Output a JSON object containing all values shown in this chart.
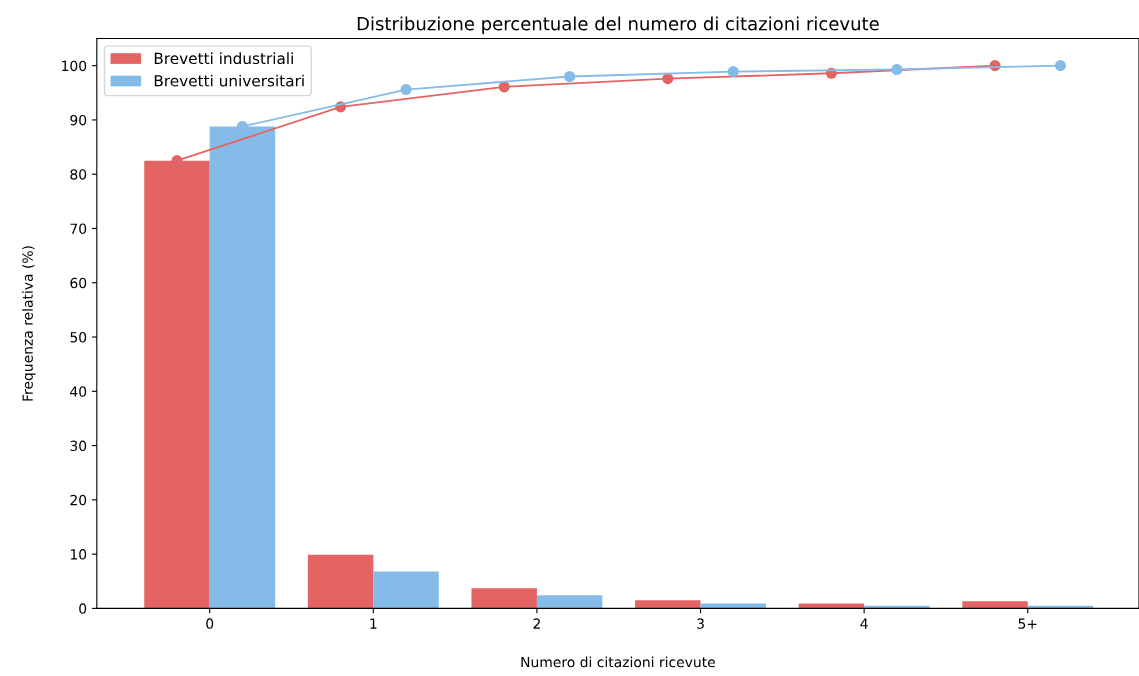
{
  "chart_data": {
    "type": "bar",
    "title": "Distribuzione percentuale del numero di citazioni ricevute",
    "xlabel": "Numero di citazioni ricevute",
    "ylabel": "Frequenza relativa (%)",
    "xlim": [
      -0.69,
      5.68
    ],
    "xticks": [
      0,
      1,
      2,
      3,
      4,
      {
        "value": 5,
        "label": "5+"
      }
    ],
    "ylim": [
      0,
      105
    ],
    "yticks": [
      0,
      10,
      20,
      30,
      40,
      50,
      60,
      70,
      80,
      90,
      100
    ],
    "series": [
      {
        "name": "Brevetti industriali",
        "color": "#e46464",
        "x": [
          -0.2,
          0.8,
          1.8,
          2.8,
          3.8,
          4.8
        ],
        "values": [
          82.5,
          9.9,
          3.7,
          1.5,
          0.9,
          1.3
        ]
      },
      {
        "name": "Brevetti universitari",
        "color": "#85bbe8",
        "x": [
          0.2,
          1.2,
          2.2,
          3.2,
          4.2,
          5.2
        ],
        "values": [
          88.8,
          6.8,
          2.4,
          0.9,
          0.5,
          0.5
        ]
      },
      {
        "type": "line",
        "color": "#e46464",
        "x": [
          -0.2,
          0.8,
          1.8,
          2.8,
          3.8,
          4.8
        ],
        "values": [
          82.5,
          92.4,
          96.1,
          97.6,
          98.6,
          100
        ]
      },
      {
        "type": "line",
        "color": "#85bbe8",
        "x": [
          0.2,
          1.2,
          2.2,
          3.2,
          4.2,
          5.2
        ],
        "values": [
          88.8,
          95.6,
          98.0,
          98.9,
          99.3,
          100
        ]
      }
    ],
    "marker": "circle",
    "legend": "top left",
    "grid": false
  }
}
